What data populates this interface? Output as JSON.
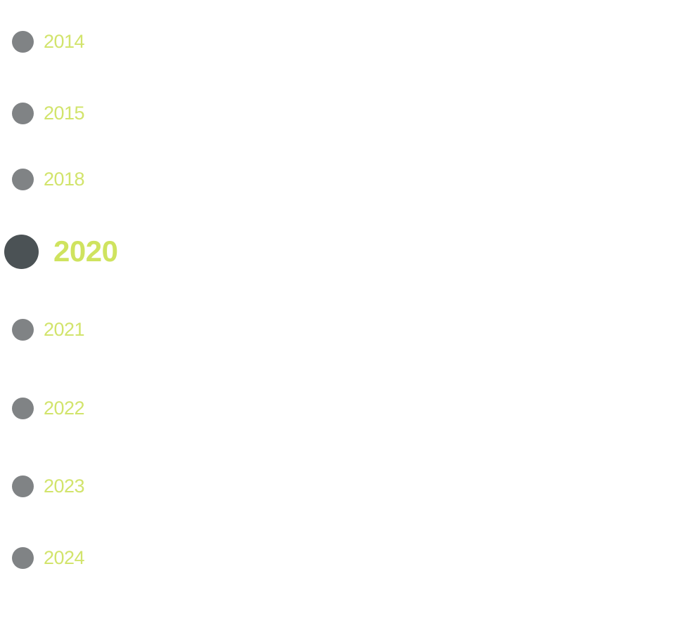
{
  "timeline": {
    "items": [
      {
        "label": "2014"
      },
      {
        "label": "2015"
      },
      {
        "label": "2018"
      },
      {
        "label": "2020",
        "active": true
      },
      {
        "label": "2021"
      },
      {
        "label": "2022"
      },
      {
        "label": "2023"
      },
      {
        "label": "2024"
      }
    ]
  }
}
